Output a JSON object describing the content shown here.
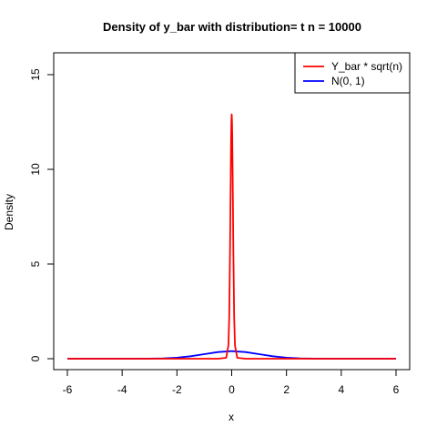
{
  "chart_data": {
    "type": "line",
    "title": "Density of  y_bar with distribution= t n = 10000",
    "xlabel": "x",
    "ylabel": "Density",
    "xlim": [
      -6,
      6
    ],
    "ylim": [
      0,
      16
    ],
    "x_ticks": [
      "-6",
      "-4",
      "-2",
      "0",
      "2",
      "4",
      "6"
    ],
    "y_ticks": [
      "0",
      "5",
      "10",
      "15"
    ],
    "grid": false,
    "legend": {
      "placement": "top-right"
    },
    "series": [
      {
        "name": "Y_bar * sqrt(n)",
        "color": "#ff0000",
        "x": [
          -6,
          -1,
          -0.5,
          -0.2,
          -0.12,
          -0.09,
          -0.06,
          -0.04,
          -0.02,
          -0.01,
          0,
          0.01,
          0.02,
          0.04,
          0.06,
          0.09,
          0.12,
          0.2,
          0.5,
          1,
          6
        ],
        "y": [
          0,
          0,
          0,
          0.05,
          0.7,
          2.2,
          5.8,
          9.0,
          11.8,
          12.6,
          12.9,
          12.6,
          11.8,
          9.0,
          5.8,
          2.2,
          0.7,
          0.05,
          0,
          0,
          0
        ]
      },
      {
        "name": "N(0, 1)",
        "color": "#0000ff",
        "x": [
          -6,
          -5,
          -4,
          -3.5,
          -3,
          -2.5,
          -2,
          -1.5,
          -1,
          -0.5,
          0,
          0.5,
          1,
          1.5,
          2,
          2.5,
          3,
          3.5,
          4,
          5,
          6
        ],
        "y": [
          0,
          0,
          0.0001,
          0.0009,
          0.0044,
          0.0175,
          0.054,
          0.1295,
          0.242,
          0.352,
          0.399,
          0.352,
          0.242,
          0.1295,
          0.054,
          0.0175,
          0.0044,
          0.0009,
          0.0001,
          0,
          0
        ]
      }
    ]
  }
}
